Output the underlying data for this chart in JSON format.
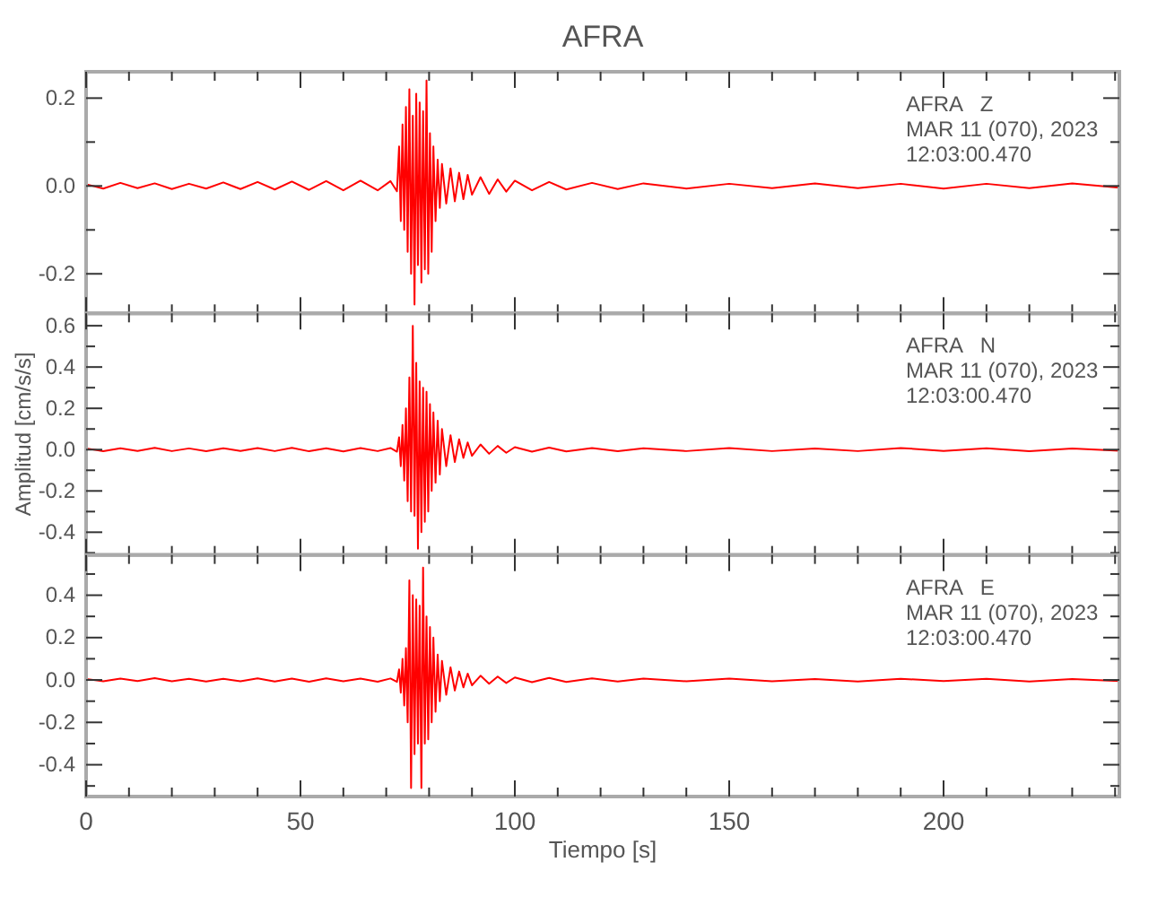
{
  "chart_data": [
    {
      "type": "line",
      "title": "AFRA",
      "annotations": [
        "AFRA   Z",
        "MAR 11 (070), 2023",
        "12:03:00.470"
      ],
      "tick_labels": "y",
      "grid": false,
      "xlim": [
        0,
        241
      ],
      "xticks": [
        0,
        {
          "value": 10,
          "label": null
        },
        {
          "value": 20,
          "label": null
        },
        {
          "value": 30,
          "label": null
        },
        {
          "value": 40,
          "label": null
        },
        50,
        {
          "value": 60,
          "label": null
        },
        {
          "value": 70,
          "label": null
        },
        {
          "value": 80,
          "label": null
        },
        {
          "value": 90,
          "label": null
        },
        100,
        {
          "value": 110,
          "label": null
        },
        {
          "value": 120,
          "label": null
        },
        {
          "value": 130,
          "label": null
        },
        {
          "value": 140,
          "label": null
        },
        150,
        {
          "value": 160,
          "label": null
        },
        {
          "value": 170,
          "label": null
        },
        {
          "value": 180,
          "label": null
        },
        {
          "value": 190,
          "label": null
        },
        200,
        {
          "value": 210,
          "label": null
        },
        {
          "value": 220,
          "label": null
        },
        {
          "value": 230,
          "label": null
        },
        {
          "value": 240,
          "label": null
        }
      ],
      "ylim": [
        -0.29,
        0.26
      ],
      "yticks": [
        -0.2,
        {
          "value": -0.1,
          "label": null
        },
        {
          "value": 0,
          "label": "0.0"
        },
        {
          "value": 0.1,
          "label": null
        },
        0.2
      ],
      "x": [
        0,
        4,
        8,
        12,
        16,
        20,
        24,
        28,
        32,
        36,
        40,
        44,
        48,
        52,
        56,
        60,
        64,
        68,
        71,
        72.5,
        73,
        73.4,
        73.8,
        74.2,
        74.6,
        75,
        75.4,
        75.8,
        76.2,
        76.6,
        77,
        77.4,
        77.8,
        78.2,
        78.6,
        79,
        79.4,
        79.8,
        80.2,
        80.6,
        81,
        81.5,
        82,
        82.5,
        83,
        84,
        85,
        86,
        87,
        88,
        89,
        90,
        92,
        94,
        96,
        98,
        100,
        104,
        108,
        112,
        118,
        124,
        130,
        140,
        150,
        160,
        170,
        180,
        190,
        200,
        210,
        220,
        230,
        241
      ],
      "series": [
        {
          "color": "#ff0000",
          "values": [
            0.004,
            -0.006,
            0.007,
            -0.005,
            0.006,
            -0.007,
            0.005,
            -0.006,
            0.008,
            -0.007,
            0.009,
            -0.008,
            0.01,
            -0.009,
            0.011,
            -0.01,
            0.012,
            -0.01,
            0.011,
            -0.012,
            0.09,
            -0.08,
            0.14,
            -0.1,
            0.18,
            -0.15,
            0.22,
            -0.2,
            0.16,
            -0.27,
            0.21,
            -0.18,
            0.19,
            -0.22,
            0.17,
            -0.19,
            0.24,
            -0.2,
            0.12,
            -0.15,
            0.09,
            -0.08,
            0.06,
            -0.05,
            0.05,
            -0.04,
            0.04,
            -0.035,
            0.03,
            -0.03,
            0.025,
            -0.02,
            0.02,
            -0.018,
            0.015,
            -0.013,
            0.012,
            -0.01,
            0.009,
            -0.008,
            0.007,
            -0.007,
            0.006,
            -0.006,
            0.005,
            -0.005,
            0.006,
            -0.005,
            0.005,
            -0.006,
            0.005,
            -0.005,
            0.006,
            -0.004
          ]
        }
      ]
    },
    {
      "type": "line",
      "ylabel": "Amplitud [cm/s/s]",
      "annotations": [
        "AFRA   N",
        "MAR 11 (070), 2023",
        "12:03:00.470"
      ],
      "tick_labels": "y",
      "grid": false,
      "xlim": [
        0,
        241
      ],
      "xticks": [
        0,
        {
          "value": 10,
          "label": null
        },
        {
          "value": 20,
          "label": null
        },
        {
          "value": 30,
          "label": null
        },
        {
          "value": 40,
          "label": null
        },
        50,
        {
          "value": 60,
          "label": null
        },
        {
          "value": 70,
          "label": null
        },
        {
          "value": 80,
          "label": null
        },
        {
          "value": 90,
          "label": null
        },
        100,
        {
          "value": 110,
          "label": null
        },
        {
          "value": 120,
          "label": null
        },
        {
          "value": 130,
          "label": null
        },
        {
          "value": 140,
          "label": null
        },
        150,
        {
          "value": 160,
          "label": null
        },
        {
          "value": 170,
          "label": null
        },
        {
          "value": 180,
          "label": null
        },
        {
          "value": 190,
          "label": null
        },
        200,
        {
          "value": 210,
          "label": null
        },
        {
          "value": 220,
          "label": null
        },
        {
          "value": 230,
          "label": null
        },
        {
          "value": 240,
          "label": null
        }
      ],
      "ylim": [
        -0.51,
        0.66
      ],
      "yticks": [
        {
          "value": -0.5,
          "label": null
        },
        -0.4,
        {
          "value": -0.3,
          "label": null
        },
        -0.2,
        {
          "value": -0.1,
          "label": null
        },
        {
          "value": 0,
          "label": "0.0"
        },
        {
          "value": 0.1,
          "label": null
        },
        0.2,
        {
          "value": 0.3,
          "label": null
        },
        0.4,
        {
          "value": 0.5,
          "label": null
        },
        0.6
      ],
      "x": [
        0,
        4,
        8,
        12,
        16,
        20,
        24,
        28,
        32,
        36,
        40,
        44,
        48,
        52,
        56,
        60,
        64,
        68,
        71,
        72.5,
        73,
        73.4,
        73.8,
        74.2,
        74.6,
        75,
        75.4,
        75.8,
        76.2,
        76.6,
        77,
        77.4,
        77.8,
        78.2,
        78.6,
        79,
        79.4,
        79.8,
        80.2,
        80.6,
        81,
        81.5,
        82,
        82.5,
        83,
        84,
        85,
        86,
        87,
        88,
        89,
        90,
        92,
        94,
        96,
        98,
        100,
        104,
        108,
        112,
        118,
        124,
        130,
        140,
        150,
        160,
        170,
        180,
        190,
        200,
        210,
        220,
        230,
        241
      ],
      "series": [
        {
          "color": "#ff0000",
          "values": [
            0.006,
            -0.008,
            0.007,
            -0.006,
            0.009,
            -0.007,
            0.006,
            -0.008,
            0.007,
            -0.006,
            0.008,
            -0.007,
            0.009,
            -0.008,
            0.007,
            -0.009,
            0.008,
            -0.007,
            0.008,
            -0.01,
            0.06,
            -0.08,
            0.12,
            -0.15,
            0.2,
            -0.25,
            0.35,
            -0.3,
            0.6,
            -0.32,
            0.42,
            -0.48,
            0.33,
            -0.4,
            0.3,
            -0.35,
            0.28,
            -0.3,
            0.22,
            -0.2,
            0.18,
            -0.16,
            0.14,
            -0.12,
            0.1,
            -0.08,
            0.07,
            -0.06,
            0.05,
            -0.04,
            0.035,
            -0.03,
            0.025,
            -0.02,
            0.018,
            -0.015,
            0.012,
            -0.01,
            0.01,
            -0.009,
            0.008,
            -0.008,
            0.007,
            -0.007,
            0.008,
            -0.007,
            0.006,
            -0.007,
            0.008,
            -0.006,
            0.007,
            -0.008,
            0.006,
            -0.005
          ]
        }
      ]
    },
    {
      "type": "line",
      "xlabel": "Tiempo [s]",
      "annotations": [
        "AFRA   E",
        "MAR 11 (070), 2023",
        "12:03:00.470"
      ],
      "grid": false,
      "xlim": [
        0,
        241
      ],
      "xticks": [
        0,
        {
          "value": 10,
          "label": null
        },
        {
          "value": 20,
          "label": null
        },
        {
          "value": 30,
          "label": null
        },
        {
          "value": 40,
          "label": null
        },
        50,
        {
          "value": 60,
          "label": null
        },
        {
          "value": 70,
          "label": null
        },
        {
          "value": 80,
          "label": null
        },
        {
          "value": 90,
          "label": null
        },
        100,
        {
          "value": 110,
          "label": null
        },
        {
          "value": 120,
          "label": null
        },
        {
          "value": 130,
          "label": null
        },
        {
          "value": 140,
          "label": null
        },
        150,
        {
          "value": 160,
          "label": null
        },
        {
          "value": 170,
          "label": null
        },
        {
          "value": 180,
          "label": null
        },
        {
          "value": 190,
          "label": null
        },
        200,
        {
          "value": 210,
          "label": null
        },
        {
          "value": 220,
          "label": null
        },
        {
          "value": 230,
          "label": null
        },
        {
          "value": 240,
          "label": null
        }
      ],
      "ylim": [
        -0.55,
        0.59
      ],
      "yticks": [
        {
          "value": -0.5,
          "label": null
        },
        -0.4,
        {
          "value": -0.3,
          "label": null
        },
        -0.2,
        {
          "value": -0.1,
          "label": null
        },
        {
          "value": 0,
          "label": "0.0"
        },
        {
          "value": 0.1,
          "label": null
        },
        0.2,
        {
          "value": 0.3,
          "label": null
        },
        0.4,
        {
          "value": 0.5,
          "label": null
        }
      ],
      "x": [
        0,
        4,
        8,
        12,
        16,
        20,
        24,
        28,
        32,
        36,
        40,
        44,
        48,
        52,
        56,
        60,
        64,
        68,
        71,
        72.5,
        73,
        73.4,
        73.8,
        74.2,
        74.6,
        75,
        75.4,
        75.8,
        76.2,
        76.6,
        77,
        77.4,
        77.8,
        78.2,
        78.6,
        79,
        79.4,
        79.8,
        80.2,
        80.6,
        81,
        81.5,
        82,
        82.5,
        83,
        84,
        85,
        86,
        87,
        88,
        89,
        90,
        92,
        94,
        96,
        98,
        100,
        104,
        108,
        112,
        118,
        124,
        130,
        140,
        150,
        160,
        170,
        180,
        190,
        200,
        210,
        220,
        230,
        241
      ],
      "series": [
        {
          "color": "#ff0000",
          "values": [
            0.005,
            -0.006,
            0.007,
            -0.005,
            0.009,
            -0.006,
            0.006,
            -0.007,
            0.006,
            -0.006,
            0.008,
            -0.007,
            0.007,
            -0.008,
            0.008,
            -0.006,
            0.007,
            -0.008,
            0.007,
            -0.009,
            0.05,
            -0.06,
            0.1,
            -0.12,
            0.15,
            -0.2,
            0.47,
            -0.51,
            0.4,
            -0.35,
            0.38,
            -0.3,
            0.35,
            -0.51,
            0.53,
            -0.3,
            0.3,
            -0.28,
            0.25,
            -0.2,
            0.2,
            -0.15,
            0.12,
            -0.1,
            0.09,
            -0.07,
            0.06,
            -0.05,
            0.04,
            -0.035,
            0.03,
            -0.025,
            0.02,
            -0.018,
            0.016,
            -0.014,
            0.012,
            -0.01,
            0.01,
            -0.009,
            0.008,
            -0.007,
            0.007,
            -0.006,
            0.007,
            -0.006,
            0.005,
            -0.007,
            0.006,
            -0.005,
            0.006,
            -0.007,
            0.005,
            -0.005
          ]
        }
      ]
    }
  ]
}
